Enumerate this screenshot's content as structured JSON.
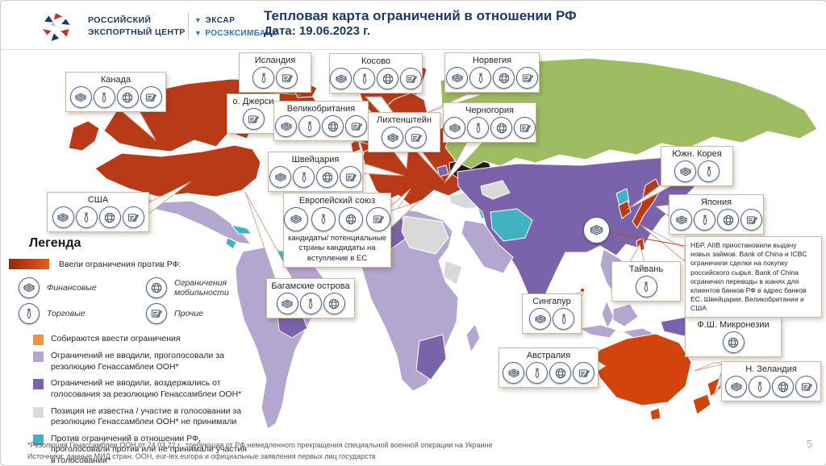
{
  "header": {
    "logo_line1": "РОССИЙСКИЙ",
    "logo_line2": "ЭКСПОРТНЫЙ ЦЕНТР",
    "partner1": "ЭКСАР",
    "partner2": "РОСЭКСИМБАНК",
    "title_line1": "Тепловая карта ограничений в отношении РФ",
    "title_line2": "Дата: 19.06.2023 г."
  },
  "legend": {
    "title": "Легенда",
    "sanctions_label": "Ввели ограничения против РФ:",
    "icon_types": [
      {
        "icon": "money",
        "label": "Финансовые"
      },
      {
        "icon": "globe",
        "label": "Ограничения мобильности"
      },
      {
        "icon": "tie",
        "label": "Торговые"
      },
      {
        "icon": "doc",
        "label": "Прочие"
      }
    ],
    "categories": [
      {
        "color": "#f0923e",
        "label": "Собираются ввести ограничения"
      },
      {
        "color": "#b4a7cf",
        "label": "Ограничений не вводили, проголосовали за резолюцию Генассамблеи ООН*"
      },
      {
        "color": "#7a63ab",
        "label": "Ограничений не вводили, воздержались от голосования за резолюцию Генассамблеи ООН*"
      },
      {
        "color": "#d9d9d9",
        "label": "Позиция не известна / участие в голосовании за резолюцию Генассамблеи ООН* не принимали"
      },
      {
        "color": "#41b1c4",
        "label": "Против ограничений в отношении РФ, проголосовали против или не принимали участия в голосовании*"
      }
    ]
  },
  "map": {
    "colors": {
      "sanctions": "#b93a16",
      "sanctions_bright": "#d2440c",
      "planning": "#f0923e",
      "voted_for": "#b4a7cf",
      "abstained": "#7a63ab",
      "unknown": "#d9d9d9",
      "against": "#41b1c4",
      "russia": "#9cbd62",
      "ukraine": "#1f1a17"
    }
  },
  "callouts": [
    {
      "name": "Канада",
      "icons": [
        "money",
        "tie",
        "globe",
        "doc"
      ]
    },
    {
      "name": "Исландия",
      "icons": [
        "tie",
        "doc"
      ]
    },
    {
      "name": "Косово",
      "icons": [
        "money",
        "tie",
        "globe",
        "doc"
      ]
    },
    {
      "name": "Норвегия",
      "icons": [
        "money",
        "tie",
        "globe",
        "doc"
      ]
    },
    {
      "name": "о. Джерси",
      "icons": [
        "doc"
      ]
    },
    {
      "name": "Великобритания",
      "icons": [
        "money",
        "tie",
        "globe",
        "doc"
      ]
    },
    {
      "name": "Лихтенштейн",
      "icons": [
        "money",
        "doc"
      ]
    },
    {
      "name": "Черногория",
      "icons": [
        "money",
        "tie",
        "globe",
        "doc"
      ]
    },
    {
      "name": "Швейцария",
      "icons": [
        "money",
        "tie",
        "globe",
        "doc"
      ]
    },
    {
      "name": "Европейский союз",
      "icons": [
        "money",
        "tie",
        "globe",
        "doc"
      ],
      "note": "кандидаты/ потенциальные страны кандидаты на вступление в ЕС"
    },
    {
      "name": "США",
      "icons": [
        "money",
        "tie",
        "globe",
        "doc"
      ]
    },
    {
      "name": "Багамские острова",
      "icons": [
        "money",
        "tie",
        "globe"
      ]
    },
    {
      "name": "Южн. Корея",
      "icons": [
        "money",
        "tie"
      ]
    },
    {
      "name": "Япония",
      "icons": [
        "money",
        "tie",
        "globe",
        "doc"
      ]
    },
    {
      "name": "Тайвань",
      "icons": [
        "tie"
      ]
    },
    {
      "name": "Сингапур",
      "icons": [
        "money",
        "tie"
      ]
    },
    {
      "name": "Ф.Ш. Микронезии",
      "icons": [
        "globe"
      ]
    },
    {
      "name": "Австралия",
      "icons": [
        "money",
        "tie",
        "globe",
        "doc"
      ]
    },
    {
      "name": "Н. Зеландия",
      "icons": [
        "money",
        "tie",
        "globe",
        "doc"
      ]
    }
  ],
  "annotation": "НБР, AIIB приостановили выдачу новых займов. Bank of China и ICBC ограничили сделки на покупку российского сырья. Bank of China ограничил переводы в юанях для клиентов банков РФ в адрес банков ЕС, Швейцарии, Великобритании и США",
  "footnote_line1": "*Резолюция Генассамблеи ООН от 24.03.22 г., требующая от РФ немедленного прекращения специальной военной операции на Украине",
  "footnote_line2": "Источники: данные МИД стран, ООН, eur-lex.europa и официальные заявления первых лиц государств",
  "page_number": "5"
}
